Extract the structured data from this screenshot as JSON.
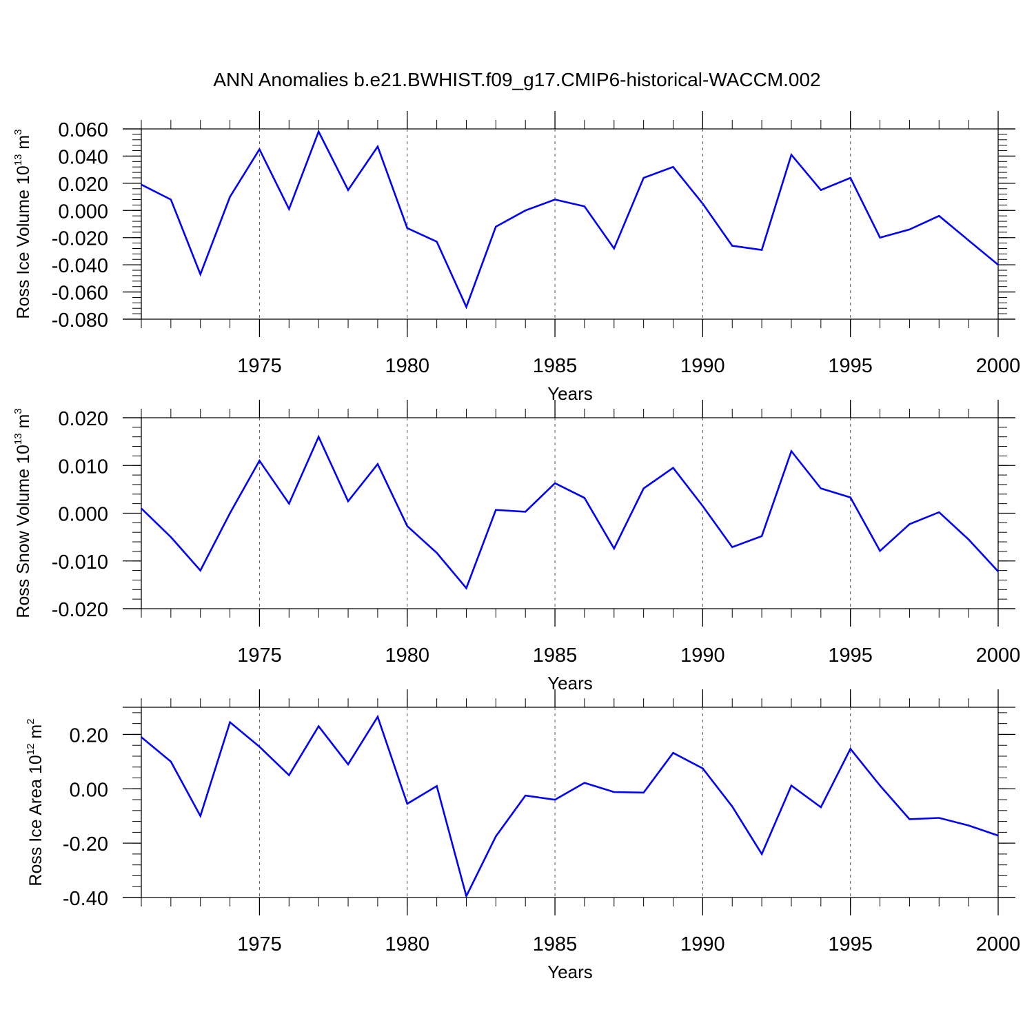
{
  "title": "ANN Anomalies b.e21.BWHIST.f09_g17.CMIP6-historical-WACCM.002",
  "chart_data": [
    {
      "type": "line",
      "ylabel_parts": [
        "Ross Ice Volume 10",
        "13",
        " m",
        "3"
      ],
      "xlabel": "Years",
      "xlim": [
        1971,
        2000
      ],
      "ylim": [
        -0.08,
        0.06
      ],
      "ymajor": [
        0.06,
        0.04,
        0.02,
        0.0,
        -0.02,
        -0.04,
        -0.06,
        -0.08
      ],
      "ytick_labels": [
        "0.060",
        "0.040",
        "0.020",
        "0.000",
        "-0.020",
        "-0.040",
        "-0.060",
        "-0.080"
      ],
      "xtick_values": [
        1975,
        1980,
        1985,
        1990,
        1995,
        2000
      ],
      "xtick_labels": [
        "1975",
        "1980",
        "1985",
        "1990",
        "1995",
        "2000"
      ],
      "grid": "dashed vertical at major x ticks",
      "series": [
        {
          "color": "#0000ff",
          "x": [
            1971,
            1972,
            1973,
            1974,
            1975,
            1976,
            1977,
            1978,
            1979,
            1980,
            1981,
            1982,
            1983,
            1984,
            1985,
            1986,
            1987,
            1988,
            1989,
            1990,
            1991,
            1992,
            1993,
            1994,
            1995,
            1996,
            1997,
            1998,
            1999,
            2000
          ],
          "y": [
            0.019,
            0.008,
            -0.047,
            0.01,
            0.045,
            0.001,
            0.058,
            0.015,
            0.047,
            -0.013,
            -0.023,
            -0.071,
            -0.012,
            0.0,
            0.008,
            0.003,
            -0.028,
            0.024,
            0.032,
            0.005,
            -0.026,
            -0.029,
            0.041,
            0.015,
            0.024,
            -0.02,
            -0.014,
            -0.004,
            -0.022,
            -0.04
          ]
        }
      ]
    },
    {
      "type": "line",
      "ylabel_parts": [
        "Ross Snow Volume 10",
        "13",
        " m",
        "3"
      ],
      "xlabel": "Years",
      "xlim": [
        1971,
        2000
      ],
      "ylim": [
        -0.02,
        0.02
      ],
      "ymajor": [
        0.02,
        0.01,
        0.0,
        -0.01,
        -0.02
      ],
      "ytick_labels": [
        "0.020",
        "0.010",
        "0.000",
        "-0.010",
        "-0.020"
      ],
      "xtick_values": [
        1975,
        1980,
        1985,
        1990,
        1995,
        2000
      ],
      "xtick_labels": [
        "1975",
        "1980",
        "1985",
        "1990",
        "1995",
        "2000"
      ],
      "grid": "dashed vertical at major x ticks",
      "series": [
        {
          "color": "#0000ff",
          "x": [
            1971,
            1972,
            1973,
            1974,
            1975,
            1976,
            1977,
            1978,
            1979,
            1980,
            1981,
            1982,
            1983,
            1984,
            1985,
            1986,
            1987,
            1988,
            1989,
            1990,
            1991,
            1992,
            1993,
            1994,
            1995,
            1996,
            1997,
            1998,
            1999,
            2000
          ],
          "y": [
            0.001,
            -0.005,
            -0.012,
            0.0,
            0.011,
            0.002,
            0.016,
            0.0025,
            0.0103,
            -0.0027,
            -0.0083,
            -0.0157,
            0.0007,
            0.0003,
            0.0063,
            0.0032,
            -0.0074,
            0.0052,
            0.0095,
            0.0015,
            -0.0071,
            -0.0048,
            0.013,
            0.0052,
            0.0033,
            -0.0079,
            -0.0023,
            0.0002,
            -0.0055,
            -0.0122
          ]
        }
      ]
    },
    {
      "type": "line",
      "ylabel_parts": [
        "Ross Ice Area 10",
        "12",
        " m",
        "2"
      ],
      "xlabel": "Years",
      "xlim": [
        1971,
        2000
      ],
      "ylim": [
        -0.4,
        0.3
      ],
      "ymajor": [
        0.2,
        0.0,
        -0.2,
        -0.4
      ],
      "ytick_labels": [
        "0.20",
        "0.00",
        "-0.20",
        "-0.40"
      ],
      "xtick_values": [
        1975,
        1980,
        1985,
        1990,
        1995,
        2000
      ],
      "xtick_labels": [
        "1975",
        "1980",
        "1985",
        "1990",
        "1995",
        "2000"
      ],
      "grid": "dashed vertical at major x ticks",
      "series": [
        {
          "color": "#0000ff",
          "x": [
            1971,
            1972,
            1973,
            1974,
            1975,
            1976,
            1977,
            1978,
            1979,
            1980,
            1981,
            1982,
            1983,
            1984,
            1985,
            1986,
            1987,
            1988,
            1989,
            1990,
            1991,
            1992,
            1993,
            1994,
            1995,
            1996,
            1997,
            1998,
            1999,
            2000
          ],
          "y": [
            0.19,
            0.1,
            -0.1,
            0.245,
            0.155,
            0.05,
            0.23,
            0.09,
            0.265,
            -0.055,
            0.01,
            -0.395,
            -0.175,
            -0.025,
            -0.04,
            0.022,
            -0.012,
            -0.014,
            0.132,
            0.075,
            -0.065,
            -0.24,
            0.012,
            -0.068,
            0.147,
            0.012,
            -0.112,
            -0.107,
            -0.135,
            -0.172
          ]
        }
      ]
    }
  ]
}
